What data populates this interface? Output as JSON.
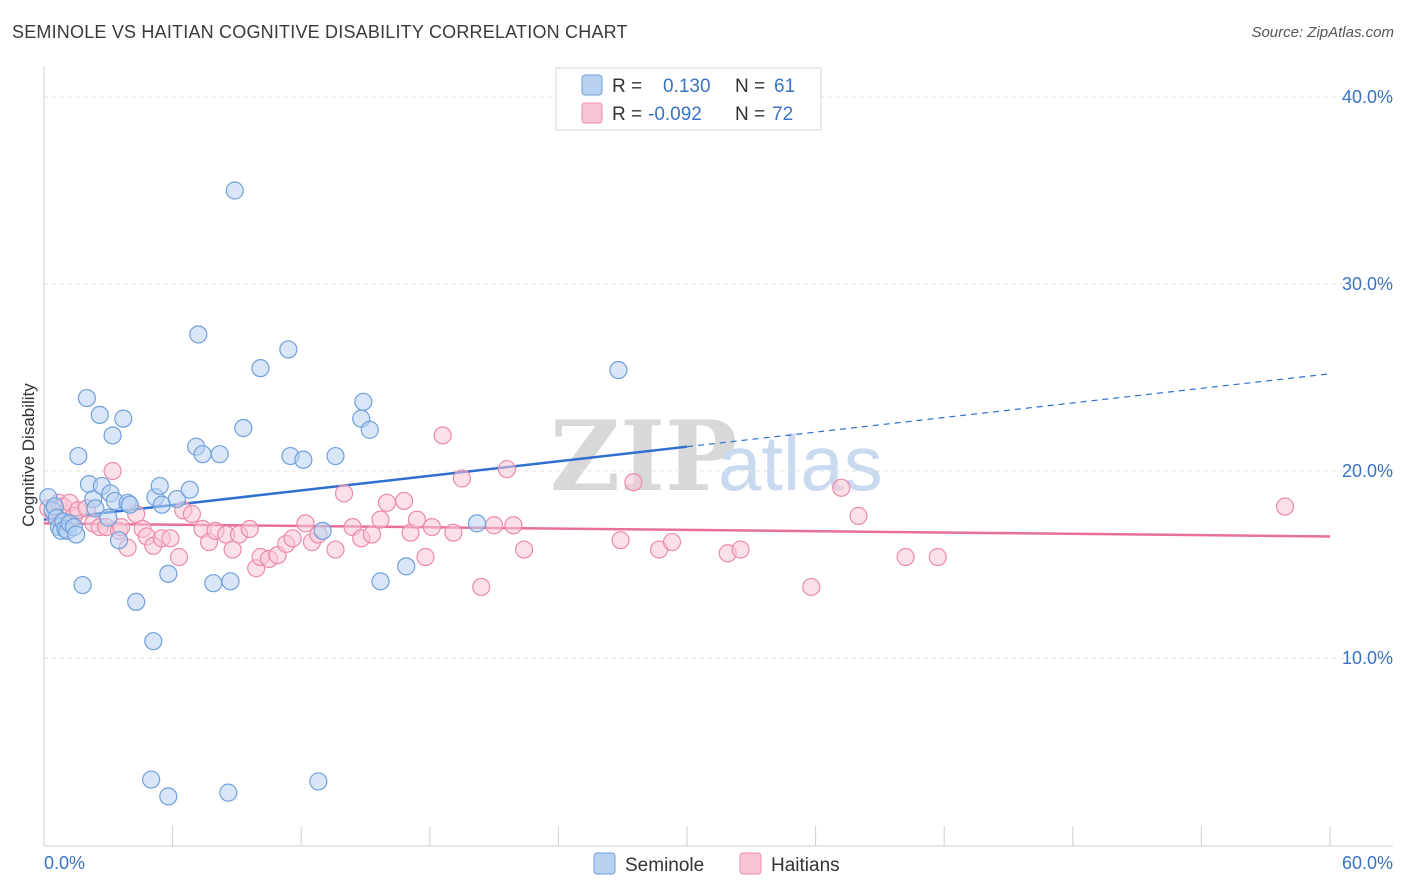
{
  "title": "SEMINOLE VS HAITIAN COGNITIVE DISABILITY CORRELATION CHART",
  "source": "Source: ZipAtlas.com",
  "watermark": {
    "zip": "ZIP",
    "atlas": "atlas"
  },
  "colors": {
    "seminole": "#6fa0dc",
    "seminole_fill": "#b8d1f0",
    "haitians": "#ec8aaa",
    "haitians_fill": "#f7c6d5",
    "seminole_line": "#2f6fcf",
    "haitians_line": "#e8709a",
    "axis_text": "#3a73c4"
  },
  "legend": {
    "r_label": "R =",
    "n_label": "N =",
    "seminole_r": "0.130",
    "seminole_n": "61",
    "haitians_r": "-0.092",
    "haitians_n": "72"
  },
  "chart_data": {
    "type": "scatter",
    "title": "SEMINOLE VS HAITIAN COGNITIVE DISABILITY CORRELATION CHART",
    "xlabel": "",
    "ylabel": "Cognitive Disability",
    "xlim": [
      0,
      60
    ],
    "ylim": [
      0,
      40
    ],
    "x_tick_labels": [
      "0.0%",
      "60.0%"
    ],
    "y_ticks": [
      10,
      20,
      30,
      40
    ],
    "y_tick_labels": [
      "10.0%",
      "20.0%",
      "30.0%",
      "40.0%"
    ],
    "grid": true,
    "legend_position": "top-center",
    "series": [
      {
        "name": "Seminole",
        "points": [
          [
            0.2,
            18.6
          ],
          [
            0.4,
            17.9
          ],
          [
            0.5,
            18.1
          ],
          [
            0.6,
            17.5
          ],
          [
            0.7,
            17.0
          ],
          [
            0.8,
            16.8
          ],
          [
            0.9,
            17.3
          ],
          [
            1.0,
            16.9
          ],
          [
            1.1,
            16.8
          ],
          [
            1.2,
            17.2
          ],
          [
            1.4,
            17.0
          ],
          [
            1.5,
            16.6
          ],
          [
            1.6,
            20.8
          ],
          [
            1.8,
            13.9
          ],
          [
            2.0,
            23.9
          ],
          [
            2.1,
            19.3
          ],
          [
            2.3,
            18.5
          ],
          [
            2.4,
            18.0
          ],
          [
            2.6,
            23.0
          ],
          [
            2.7,
            19.2
          ],
          [
            3.0,
            17.5
          ],
          [
            3.1,
            18.8
          ],
          [
            3.2,
            21.9
          ],
          [
            3.3,
            18.4
          ],
          [
            3.5,
            16.3
          ],
          [
            3.7,
            22.8
          ],
          [
            3.9,
            18.3
          ],
          [
            4.0,
            18.2
          ],
          [
            4.3,
            13.0
          ],
          [
            5.0,
            3.5
          ],
          [
            5.1,
            10.9
          ],
          [
            5.2,
            18.6
          ],
          [
            5.4,
            19.2
          ],
          [
            5.5,
            18.2
          ],
          [
            5.8,
            2.6
          ],
          [
            5.8,
            14.5
          ],
          [
            6.2,
            18.5
          ],
          [
            6.8,
            19.0
          ],
          [
            7.1,
            21.3
          ],
          [
            7.2,
            27.3
          ],
          [
            7.4,
            20.9
          ],
          [
            7.9,
            14.0
          ],
          [
            8.2,
            20.9
          ],
          [
            8.6,
            2.8
          ],
          [
            8.7,
            14.1
          ],
          [
            8.9,
            35.0
          ],
          [
            9.3,
            22.3
          ],
          [
            10.1,
            25.5
          ],
          [
            11.4,
            26.5
          ],
          [
            11.5,
            20.8
          ],
          [
            12.1,
            20.6
          ],
          [
            12.8,
            3.4
          ],
          [
            13.0,
            16.8
          ],
          [
            13.6,
            20.8
          ],
          [
            14.8,
            22.8
          ],
          [
            14.9,
            23.7
          ],
          [
            15.2,
            22.2
          ],
          [
            15.7,
            14.1
          ],
          [
            16.9,
            14.9
          ],
          [
            20.2,
            17.2
          ],
          [
            26.8,
            25.4
          ]
        ]
      },
      {
        "name": "Haitians",
        "points": [
          [
            0.2,
            18.0
          ],
          [
            0.5,
            17.6
          ],
          [
            0.7,
            18.3
          ],
          [
            0.9,
            18.1
          ],
          [
            1.2,
            18.3
          ],
          [
            1.4,
            17.6
          ],
          [
            1.6,
            17.9
          ],
          [
            2.0,
            18.0
          ],
          [
            2.3,
            17.2
          ],
          [
            2.6,
            17.0
          ],
          [
            2.9,
            17.0
          ],
          [
            3.2,
            20.0
          ],
          [
            3.5,
            16.8
          ],
          [
            3.6,
            17.0
          ],
          [
            3.9,
            15.9
          ],
          [
            4.3,
            17.7
          ],
          [
            4.6,
            16.9
          ],
          [
            4.8,
            16.5
          ],
          [
            5.1,
            16.0
          ],
          [
            5.5,
            16.4
          ],
          [
            5.9,
            16.4
          ],
          [
            6.3,
            15.4
          ],
          [
            6.5,
            17.9
          ],
          [
            6.9,
            17.7
          ],
          [
            7.4,
            16.9
          ],
          [
            7.7,
            16.2
          ],
          [
            8.0,
            16.8
          ],
          [
            8.5,
            16.6
          ],
          [
            8.8,
            15.8
          ],
          [
            9.1,
            16.6
          ],
          [
            9.6,
            16.9
          ],
          [
            9.9,
            14.8
          ],
          [
            10.1,
            15.4
          ],
          [
            10.5,
            15.3
          ],
          [
            10.9,
            15.5
          ],
          [
            11.3,
            16.1
          ],
          [
            11.6,
            16.4
          ],
          [
            12.2,
            17.2
          ],
          [
            12.5,
            16.2
          ],
          [
            12.8,
            16.6
          ],
          [
            13.6,
            15.8
          ],
          [
            14.0,
            18.8
          ],
          [
            14.4,
            17.0
          ],
          [
            14.8,
            16.4
          ],
          [
            15.3,
            16.6
          ],
          [
            15.7,
            17.4
          ],
          [
            16.0,
            18.3
          ],
          [
            16.8,
            18.4
          ],
          [
            17.1,
            16.7
          ],
          [
            17.4,
            17.4
          ],
          [
            17.8,
            15.4
          ],
          [
            18.1,
            17.0
          ],
          [
            18.6,
            21.9
          ],
          [
            19.1,
            16.7
          ],
          [
            19.5,
            19.6
          ],
          [
            20.4,
            13.8
          ],
          [
            21.0,
            17.1
          ],
          [
            21.6,
            20.1
          ],
          [
            21.9,
            17.1
          ],
          [
            22.4,
            15.8
          ],
          [
            26.9,
            16.3
          ],
          [
            27.5,
            19.4
          ],
          [
            28.7,
            15.8
          ],
          [
            29.3,
            16.2
          ],
          [
            31.9,
            15.6
          ],
          [
            32.5,
            15.8
          ],
          [
            35.8,
            13.8
          ],
          [
            37.2,
            19.1
          ],
          [
            38.0,
            17.6
          ],
          [
            40.2,
            15.4
          ],
          [
            41.7,
            15.4
          ],
          [
            57.9,
            18.1
          ]
        ]
      }
    ],
    "trend_lines": [
      {
        "name": "Seminole",
        "x": [
          0,
          30
        ],
        "y": [
          17.4,
          21.3
        ],
        "dashed_extension_to": [
          60,
          25.2
        ]
      },
      {
        "name": "Haitians",
        "x": [
          0,
          60
        ],
        "y": [
          17.2,
          16.5
        ]
      }
    ]
  },
  "bottom_legend": {
    "seminole": "Seminole",
    "haitians": "Haitians"
  }
}
